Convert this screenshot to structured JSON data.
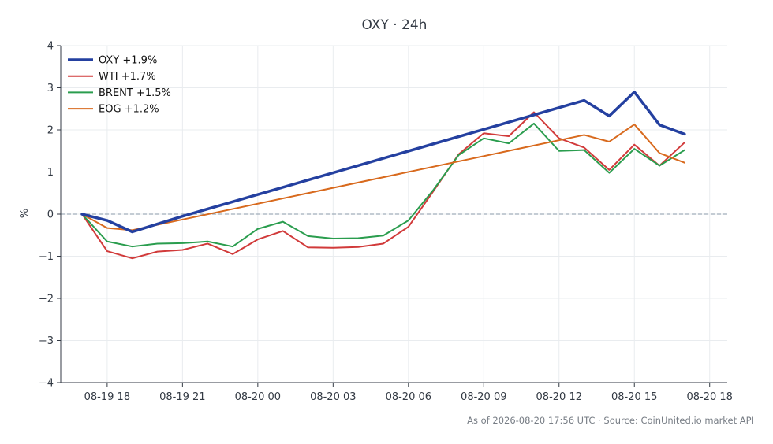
{
  "chart_data": {
    "type": "line",
    "title": "OXY · 24h",
    "ylabel": "%",
    "xlabel": "",
    "ylim": [
      -4,
      4
    ],
    "yticks": [
      -4,
      -3,
      -2,
      -1,
      0,
      1,
      2,
      3,
      4
    ],
    "ytick_labels": [
      "−4",
      "−3",
      "−2",
      "−1",
      "0",
      "1",
      "2",
      "3",
      "4"
    ],
    "xlim": [
      -0.85,
      25.7
    ],
    "xticks": [
      1,
      4,
      7,
      10,
      13,
      16,
      19,
      22,
      25
    ],
    "xtick_labels": [
      "08-19 18",
      "08-19 21",
      "08-20 00",
      "08-20 03",
      "08-20 06",
      "08-20 09",
      "08-20 12",
      "08-20 15",
      "08-20 18"
    ],
    "x_axis_note": "hours relative to 08-19 17:00",
    "grid": true,
    "zero_line": true,
    "legend_position": "top-left",
    "footer": "As of 2026-08-20 17:56 UTC · Source: CoinUnited.io market API",
    "series": [
      {
        "name": "OXY +1.9%",
        "color": "#2440a0",
        "width": 3.5,
        "x": [
          0,
          1,
          2,
          4,
          20,
          21,
          22,
          23,
          24
        ],
        "values": [
          0.0,
          -0.15,
          -0.42,
          -0.05,
          2.7,
          2.33,
          2.9,
          2.12,
          1.9
        ]
      },
      {
        "name": "WTI +1.7%",
        "color": "#d13a3a",
        "width": 2,
        "x": [
          0,
          1,
          2,
          3,
          4,
          5,
          6,
          7,
          8,
          9,
          10,
          11,
          12,
          13,
          14,
          15,
          16,
          17,
          18,
          19,
          20,
          21,
          22,
          23,
          24
        ],
        "values": [
          0.0,
          -0.88,
          -1.05,
          -0.89,
          -0.85,
          -0.7,
          -0.95,
          -0.6,
          -0.4,
          -0.79,
          -0.8,
          -0.78,
          -0.7,
          -0.3,
          0.55,
          1.42,
          1.92,
          1.85,
          2.42,
          1.8,
          1.58,
          1.05,
          1.65,
          1.15,
          1.7
        ]
      },
      {
        "name": "BRENT +1.5%",
        "color": "#2a9d4e",
        "width": 2,
        "x": [
          0,
          1,
          2,
          3,
          4,
          5,
          6,
          7,
          8,
          9,
          10,
          11,
          12,
          13,
          14,
          15,
          16,
          17,
          18,
          19,
          20,
          21,
          22,
          23,
          24
        ],
        "values": [
          0.0,
          -0.65,
          -0.77,
          -0.7,
          -0.69,
          -0.65,
          -0.77,
          -0.35,
          -0.18,
          -0.52,
          -0.58,
          -0.57,
          -0.51,
          -0.15,
          0.58,
          1.4,
          1.8,
          1.68,
          2.15,
          1.5,
          1.52,
          0.98,
          1.55,
          1.15,
          1.52
        ]
      },
      {
        "name": "EOG +1.2%",
        "color": "#d86a1e",
        "width": 2,
        "x": [
          0,
          1,
          2,
          20,
          21,
          22,
          23,
          24
        ],
        "values": [
          0.0,
          -0.33,
          -0.38,
          1.88,
          1.72,
          2.13,
          1.45,
          1.22
        ]
      }
    ]
  }
}
